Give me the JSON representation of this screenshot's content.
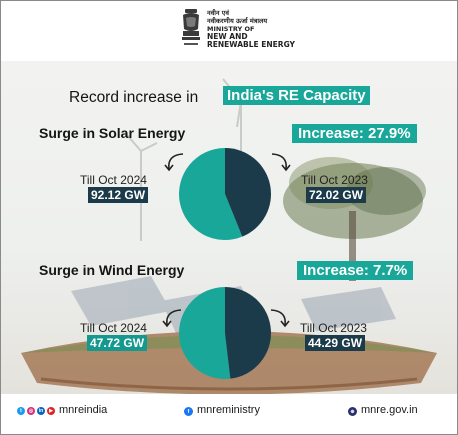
{
  "header": {
    "hindi_line1": "नवीन एवं",
    "hindi_line2": "नवीकरणीय ऊर्जा मंत्रालय",
    "ministry_of": "MINISTRY OF",
    "new_and": "NEW AND",
    "renewable_energy": "RENEWABLE ENERGY",
    "emblem_motto": "सत्यमेव जयते"
  },
  "title": {
    "prefix": "Record increase in",
    "highlight": "India's RE Capacity"
  },
  "colors": {
    "teal": "#19a79a",
    "dark": "#1c3b4a"
  },
  "chart_data": [
    {
      "type": "pie",
      "title": "Surge in Solar Energy",
      "increase": "Increase: 27.9%",
      "slices": [
        {
          "label": "Till Oct 2024",
          "value": 92.12,
          "value_label": "92.12 GW",
          "color": "#19a79a"
        },
        {
          "label": "Till Oct 2023",
          "value": 72.02,
          "value_label": "72.02 GW",
          "color": "#1c3b4a"
        }
      ]
    },
    {
      "type": "pie",
      "title": "Surge in Wind Energy",
      "increase": "Increase: 7.7%",
      "slices": [
        {
          "label": "Till Oct 2024",
          "value": 47.72,
          "value_label": "47.72 GW",
          "color": "#19a79a"
        },
        {
          "label": "Till Oct 2023",
          "value": 44.29,
          "value_label": "44.29 GW",
          "color": "#1c3b4a"
        }
      ]
    }
  ],
  "footer": {
    "handle1": "mnreindia",
    "handle2": "mnreministry",
    "website": "mnre.gov.in",
    "icons": [
      "twitter-icon",
      "instagram-icon",
      "linkedin-icon",
      "youtube-icon",
      "facebook-icon",
      "globe-icon"
    ]
  }
}
